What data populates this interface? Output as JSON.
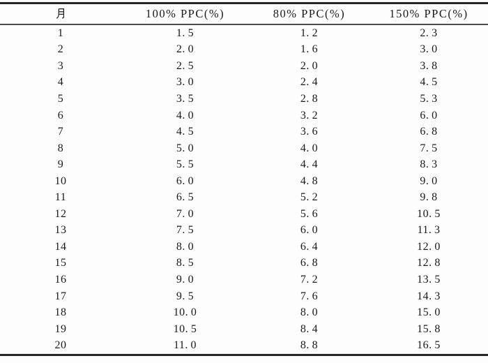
{
  "table": {
    "headers": [
      "月",
      "100% PPC(%)",
      "80% PPC(%)",
      "150% PPC(%)"
    ],
    "rows": [
      [
        1,
        1.5,
        1.2,
        2.3
      ],
      [
        2,
        2.0,
        1.6,
        3.0
      ],
      [
        3,
        2.5,
        2.0,
        3.8
      ],
      [
        4,
        3.0,
        2.4,
        4.5
      ],
      [
        5,
        3.5,
        2.8,
        5.3
      ],
      [
        6,
        4.0,
        3.2,
        6.0
      ],
      [
        7,
        4.5,
        3.6,
        6.8
      ],
      [
        8,
        5.0,
        4.0,
        7.5
      ],
      [
        9,
        5.5,
        4.4,
        8.3
      ],
      [
        10,
        6.0,
        4.8,
        9.0
      ],
      [
        11,
        6.5,
        5.2,
        9.8
      ],
      [
        12,
        7.0,
        5.6,
        10.5
      ],
      [
        13,
        7.5,
        6.0,
        11.3
      ],
      [
        14,
        8.0,
        6.4,
        12.0
      ],
      [
        15,
        8.5,
        6.8,
        12.8
      ],
      [
        16,
        9.0,
        7.2,
        13.5
      ],
      [
        17,
        9.5,
        7.6,
        14.3
      ],
      [
        18,
        10.0,
        8.0,
        15.0
      ],
      [
        19,
        10.5,
        8.4,
        15.8
      ],
      [
        20,
        11.0,
        8.8,
        16.5
      ]
    ]
  },
  "colors": {
    "background": "#fdfdfd",
    "text": "#1a1a1a",
    "rule_heavy": "#262626",
    "rule_light": "#4d4d4d"
  }
}
